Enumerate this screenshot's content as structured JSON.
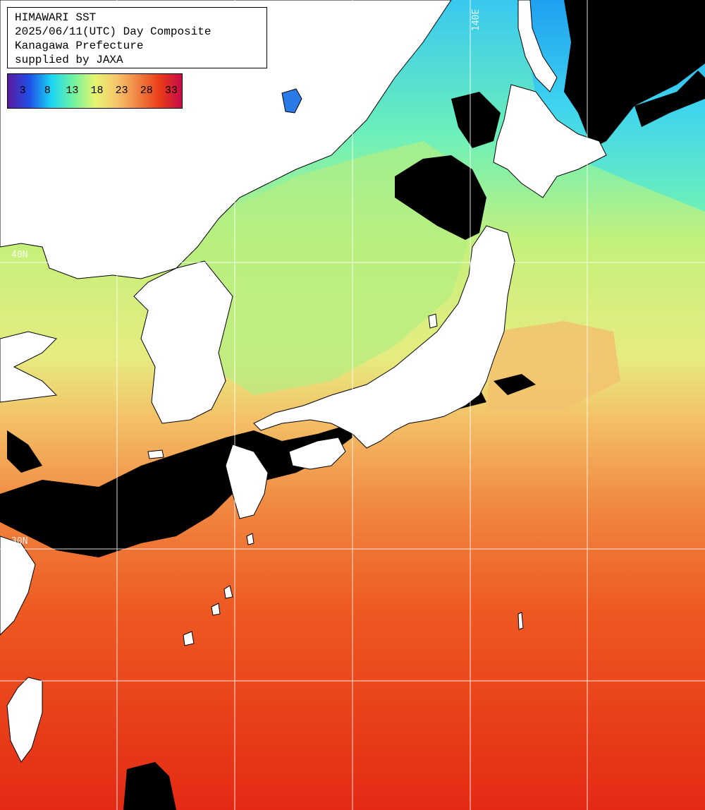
{
  "title": {
    "lines": [
      "HIMAWARI SST",
      "2025/06/11(UTC) Day Composite",
      "Kanagawa Prefecture",
      "supplied by JAXA"
    ]
  },
  "colorbar": {
    "ticks": [
      "3",
      "8",
      "13",
      "18",
      "23",
      "28",
      "33"
    ],
    "range": [
      0,
      35
    ],
    "stops": [
      "#5a1aa0",
      "#1f4fe8",
      "#1ad6f5",
      "#6ff2a0",
      "#e6f56f",
      "#f7c66b",
      "#f08040",
      "#e83a18",
      "#c80a4a"
    ]
  },
  "grid": {
    "lon_label": "140E",
    "lat_labels": [
      "40N",
      "30N"
    ]
  },
  "colors": {
    "land": "#ffffff",
    "cloud": "#000000",
    "cold_sea": "#39c8f0",
    "cool_sea": "#6ef0b8",
    "mild_sea": "#d6f07a",
    "warm_sea": "#f2a856",
    "hot_sea": "#f05a20",
    "hottest_sea": "#e8301a",
    "grid": "#ffffff"
  }
}
